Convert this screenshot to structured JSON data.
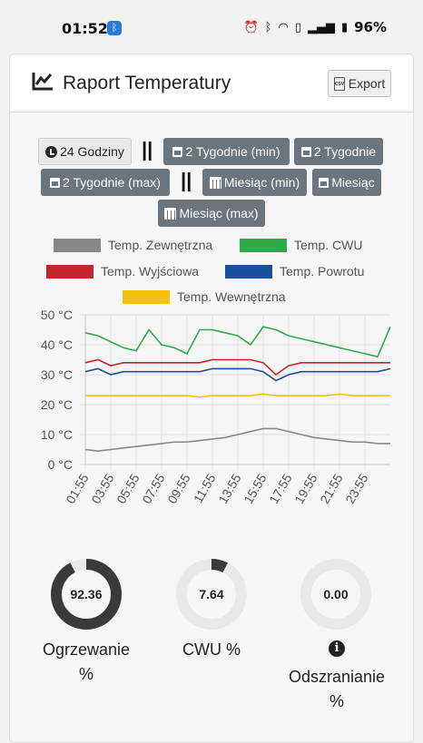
{
  "status_bar": {
    "time": "01:52",
    "battery": "96%"
  },
  "header": {
    "title": "Raport Temperatury",
    "export_label": "Export",
    "export_icon_text": "CSV"
  },
  "ranges": {
    "r24h": "24 Godziny",
    "r2w_min": "2 Tygodnie (min)",
    "r2w": "2 Tygodnie",
    "r2w_max": "2 Tygodnie (max)",
    "rm_min": "Miesiąc (min)",
    "rm": "Miesiąc",
    "rm_max": "Miesiąc (max)",
    "separator": "||"
  },
  "legend": {
    "zew": "Temp. Zewnętrzna",
    "cwu": "Temp. CWU",
    "wyj": "Temp. Wyjściowa",
    "pow": "Temp. Powrotu",
    "wew": "Temp. Wewnętrzna"
  },
  "colors": {
    "zew": "#888888",
    "cwu": "#2eaa4a",
    "wyj": "#c0262c",
    "pow": "#1a4f9c",
    "wew": "#f5c10f"
  },
  "chart_data": {
    "type": "line",
    "ylim": [
      0,
      50
    ],
    "yticks": [
      "0 °C",
      "10 °C",
      "20 °C",
      "30 °C",
      "40 °C",
      "50 °C"
    ],
    "xticks": [
      "01:55",
      "03:55",
      "05:55",
      "07:55",
      "09:55",
      "11:55",
      "13:55",
      "15:55",
      "17:55",
      "19:55",
      "21:55",
      "23:55"
    ],
    "x_hours": [
      0,
      1,
      2,
      3,
      4,
      5,
      6,
      7,
      8,
      9,
      10,
      11,
      12,
      13,
      14,
      15,
      16,
      17,
      18,
      19,
      20,
      21,
      22,
      23,
      24
    ],
    "series": [
      {
        "name": "Temp. Zewnętrzna",
        "key": "zew",
        "values": [
          5,
          4.5,
          5,
          5.5,
          6,
          6.5,
          7,
          7.5,
          7.5,
          8,
          8.5,
          9,
          10,
          11,
          12,
          12,
          11,
          10,
          9,
          8.5,
          8,
          7.5,
          7.5,
          7,
          7
        ]
      },
      {
        "name": "Temp. CWU",
        "key": "cwu",
        "values": [
          44,
          43,
          41,
          39,
          38,
          45,
          40,
          39,
          37,
          45,
          45,
          44,
          43,
          40,
          46,
          45,
          43,
          42,
          41,
          40,
          39,
          38,
          37,
          36,
          46
        ]
      },
      {
        "name": "Temp. Wyjściowa",
        "key": "wyj",
        "values": [
          34,
          35,
          33,
          34,
          34,
          34,
          34,
          34,
          34,
          34,
          35,
          35,
          35,
          35,
          34,
          30,
          33,
          34,
          34,
          34,
          34,
          34,
          34,
          34,
          34
        ]
      },
      {
        "name": "Temp. Powrotu",
        "key": "pow",
        "values": [
          31,
          32,
          30,
          31,
          31,
          31,
          31,
          31,
          31,
          31,
          32,
          32,
          32,
          32,
          31,
          28,
          30,
          31,
          31,
          31,
          31,
          31,
          31,
          31,
          32
        ]
      },
      {
        "name": "Temp. Wewnętrzna",
        "key": "wew",
        "values": [
          23,
          23,
          23,
          23,
          23,
          23,
          23,
          23,
          23,
          22.5,
          23,
          23,
          23,
          23,
          23.5,
          23,
          23,
          23,
          23,
          23,
          23.5,
          23,
          23,
          23,
          23
        ]
      }
    ]
  },
  "gauges": [
    {
      "value": "92.36",
      "fraction": 0.9236,
      "label_line1": "Ogrzewanie",
      "label_line2": "%"
    },
    {
      "value": "7.64",
      "fraction": 0.0764,
      "label_line1": "CWU %",
      "label_line2": ""
    },
    {
      "value": "0.00",
      "fraction": 0,
      "label_line1": "Odszranianie",
      "label_line2": "%"
    }
  ]
}
